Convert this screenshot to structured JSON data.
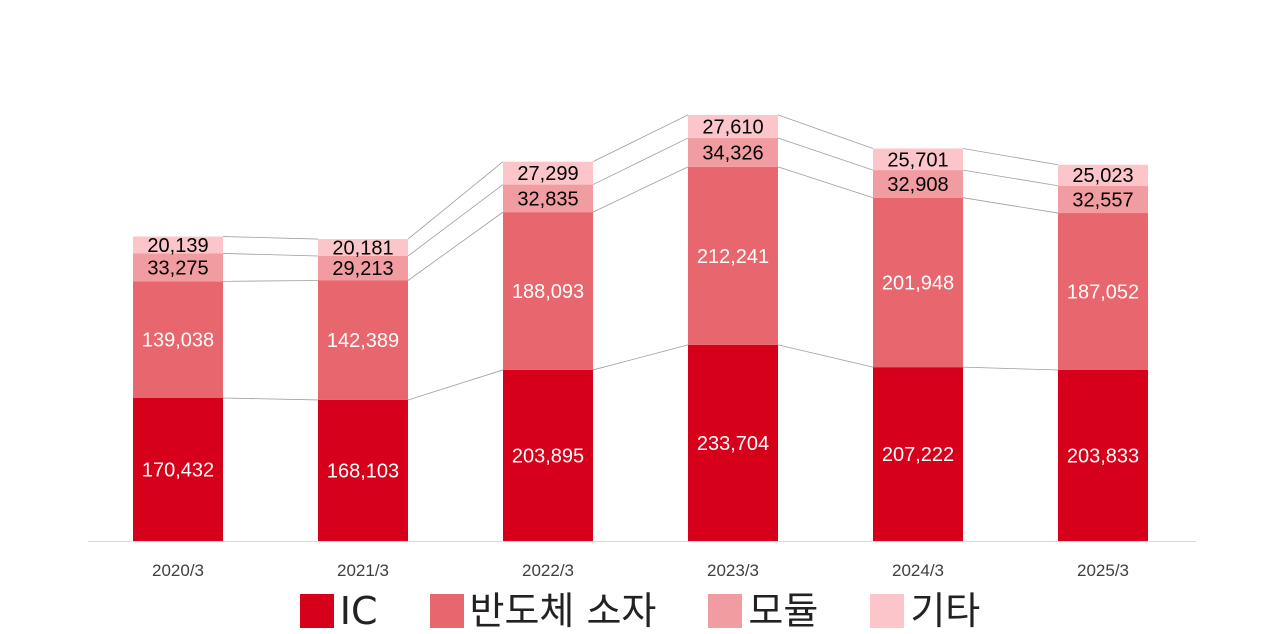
{
  "chart_data": {
    "type": "bar",
    "stacked": true,
    "categories": [
      "2020/3",
      "2021/3",
      "2022/3",
      "2023/3",
      "2024/3",
      "2025/3"
    ],
    "series": [
      {
        "name": "IC",
        "color": "#d7001a",
        "label_color": "#ffffff",
        "values": [
          170432,
          168103,
          203895,
          233704,
          207222,
          203833
        ]
      },
      {
        "name": "반도체 소자",
        "color": "#e8666d",
        "label_color": "#ffffff",
        "values": [
          139038,
          142389,
          188093,
          212241,
          201948,
          187052
        ]
      },
      {
        "name": "모듈",
        "color": "#f19ca0",
        "label_color": "#000000",
        "values": [
          33275,
          29213,
          32835,
          34326,
          32908,
          32557
        ]
      },
      {
        "name": "기타",
        "color": "#fcc5ca",
        "label_color": "#000000",
        "values": [
          20139,
          20181,
          27299,
          27610,
          25701,
          25023
        ]
      }
    ],
    "ylim": [
      0,
      560000
    ],
    "grid": false,
    "legend_position": "bottom",
    "connector_lines": true
  }
}
